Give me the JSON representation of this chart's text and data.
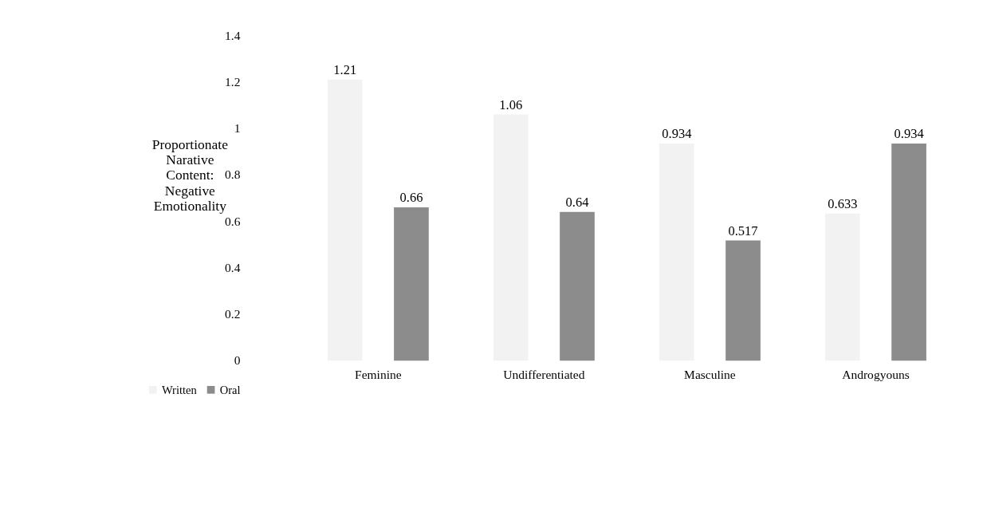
{
  "chart_data": {
    "type": "bar",
    "ylabel": "Proportionate Narative Content: Negative Emotionality",
    "categories": [
      "Feminine",
      "Undifferentiated",
      "Masculine",
      "Androgyouns"
    ],
    "series": [
      {
        "name": "Written",
        "color": "#f2f2f2",
        "values": [
          1.21,
          1.06,
          0.934,
          0.633
        ]
      },
      {
        "name": "Oral",
        "color": "#8c8c8c",
        "values": [
          0.66,
          0.64,
          0.517,
          0.934
        ]
      }
    ],
    "ylim": [
      0,
      1.4
    ],
    "yticks": [
      0,
      0.2,
      0.4,
      0.6,
      0.8,
      1,
      1.2,
      1.4
    ],
    "grid": false,
    "legend": "bottom left",
    "data_labels": true
  }
}
